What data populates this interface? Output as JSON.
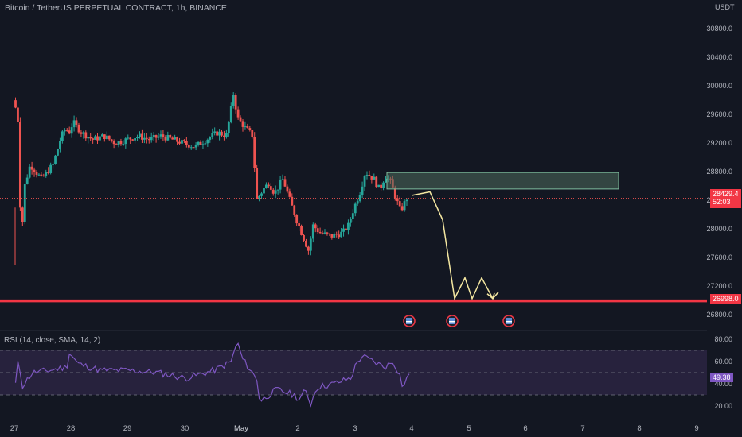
{
  "header": {
    "chart_title": "Bitcoin / TetherUS PERPETUAL CONTRACT, 1h, BINANCE",
    "currency": "USDT"
  },
  "indicator": {
    "label": "RSI (14, close, SMA, 14, 2)"
  },
  "price_axis": {
    "ticks": [
      "30800.0",
      "30400.0",
      "30000.0",
      "29600.0",
      "29200.0",
      "28800.0",
      "28400.0",
      "28000.0",
      "27600.0",
      "27200.0",
      "26800.0"
    ]
  },
  "rsi_axis": {
    "ticks": [
      "80.00",
      "60.00",
      "40.00",
      "20.00"
    ]
  },
  "time_axis": {
    "ticks": [
      "27",
      "28",
      "29",
      "30",
      "May",
      "2",
      "3",
      "4",
      "5",
      "6",
      "7",
      "8",
      "9"
    ]
  },
  "tags": {
    "last_price": "28429.4",
    "countdown": "52:03",
    "support_level": "26998.0",
    "rsi_value": "49.38"
  },
  "colors": {
    "background": "#131722",
    "up_candle": "#26a69a",
    "down_candle": "#ef5350",
    "support_line": "#f23645",
    "zone_fill": "#4f6b5c",
    "projection": "#f4e7a1",
    "rsi_line": "#7e57c2",
    "rsi_band": "#2a2340"
  },
  "chart_data": {
    "type": "candlestick",
    "symbol": "BTCUSDT.P",
    "timeframe": "1h",
    "x_axis_ticks": [
      "27",
      "28",
      "29",
      "30",
      "May",
      "2",
      "3",
      "4",
      "5",
      "6",
      "7",
      "8",
      "9"
    ],
    "y_range": [
      26650,
      31000
    ],
    "last_price": 28429.4,
    "support_level": 26998.0,
    "resistance_zone": [
      28560,
      28790
    ],
    "projected_path": [
      28470,
      28520,
      28130,
      27030,
      27320,
      27030,
      27320,
      27030,
      27120
    ],
    "events_marked": 3,
    "rsi": {
      "length": 14,
      "source": "close",
      "ma_type": "SMA",
      "ma_length": 14,
      "mult": 2,
      "last": 49.38,
      "bands": [
        70,
        30
      ],
      "range": [
        15,
        85
      ]
    }
  }
}
